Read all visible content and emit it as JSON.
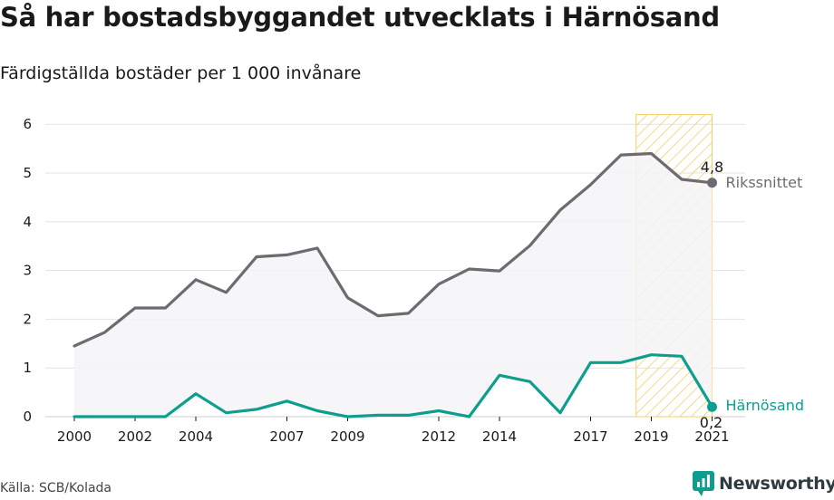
{
  "title": "Så har bostadsbyggandet utvecklats i Härnösand",
  "subtitle": "Färdigställda bostäder per 1 000 invånare",
  "source": "Källa: SCB/Kolada",
  "brand": "Newsworthy",
  "colors": {
    "national": "#6d6b70",
    "local": "#0e9e8e",
    "highlight": "#f3cf6a",
    "area": "#f5f5f7",
    "grid": "#e3e3e3"
  },
  "chart_data": {
    "type": "line",
    "x": [
      2000,
      2001,
      2002,
      2003,
      2004,
      2005,
      2006,
      2007,
      2008,
      2009,
      2010,
      2011,
      2012,
      2013,
      2014,
      2015,
      2016,
      2017,
      2018,
      2019,
      2020,
      2021
    ],
    "x_tick_labels": [
      "2000",
      "2002",
      "2004",
      "2007",
      "2009",
      "2012",
      "2014",
      "2017",
      "2019",
      "2021"
    ],
    "y_tick_labels": [
      "0",
      "1",
      "2",
      "3",
      "4",
      "5",
      "6"
    ],
    "ylim": [
      0,
      6
    ],
    "grid": true,
    "highlight_range": [
      2018.5,
      2021
    ],
    "series": [
      {
        "name": "Rikssnittet",
        "values": [
          1.45,
          1.73,
          2.23,
          2.23,
          2.81,
          2.55,
          3.28,
          3.32,
          3.46,
          2.44,
          2.07,
          2.12,
          2.72,
          3.03,
          2.99,
          3.51,
          4.24,
          4.76,
          5.37,
          5.4,
          4.87,
          4.8
        ],
        "end_label": "4,8"
      },
      {
        "name": "Härnösand",
        "values": [
          0.0,
          0.0,
          0.0,
          0.0,
          0.47,
          0.08,
          0.15,
          0.32,
          0.12,
          0.0,
          0.03,
          0.03,
          0.12,
          0.0,
          0.85,
          0.72,
          0.08,
          1.11,
          1.11,
          1.27,
          1.24,
          0.2
        ],
        "end_label": "0,2"
      }
    ]
  }
}
